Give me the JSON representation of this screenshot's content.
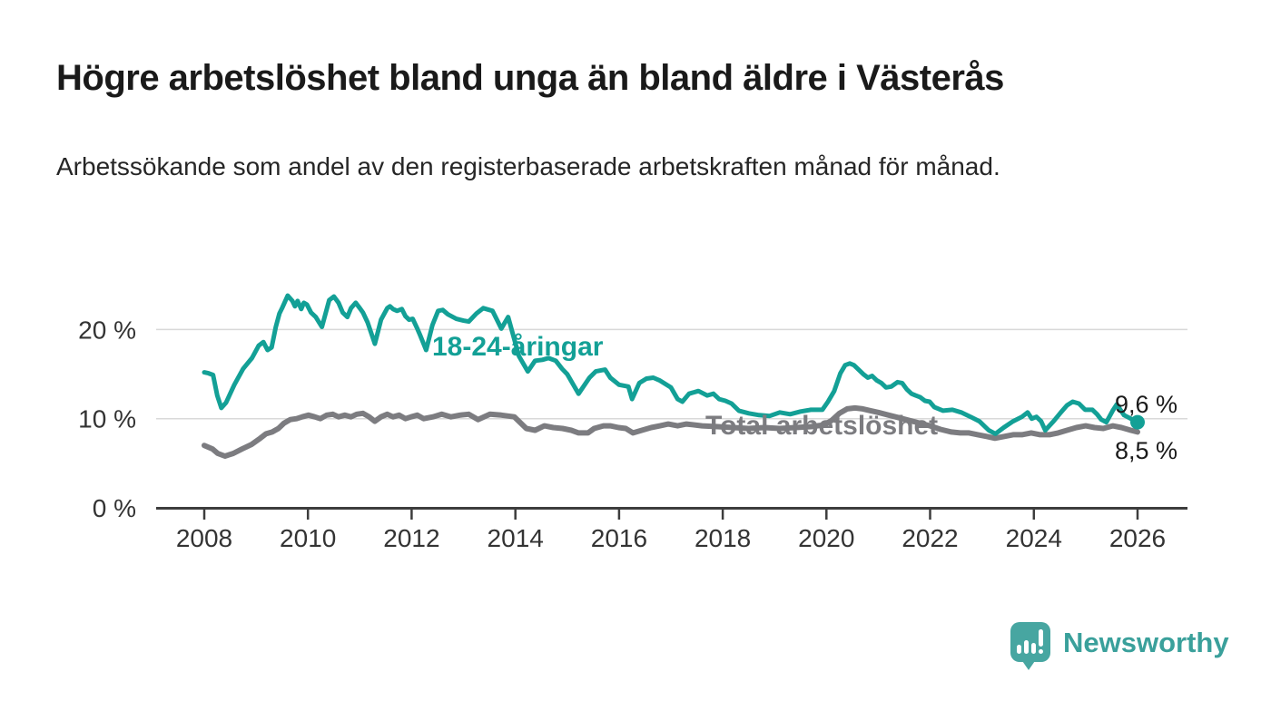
{
  "branding": {
    "name": "Newsworthy",
    "bubble_color": "#47a6a1",
    "text_color": "#3aa09b"
  },
  "chart_data": {
    "type": "line",
    "title": "Högre arbetslöshet bland unga än bland äldre i Västerås",
    "subtitle": "Arbetssökande som andel av den registerbaserade arbetskraften månad för månad.",
    "xlabel": "",
    "ylabel": "",
    "x_unit": "decimal-year (monthly data)",
    "y_unit": "percent",
    "xlim": [
      2007.9,
      2026.3
    ],
    "ylim": [
      0,
      24.5
    ],
    "grid": "horizontal",
    "legend_position": "inline-labels",
    "xticks": [
      {
        "v": 2008,
        "label": "2008"
      },
      {
        "v": 2010,
        "label": "2010"
      },
      {
        "v": 2012,
        "label": "2012"
      },
      {
        "v": 2014,
        "label": "2014"
      },
      {
        "v": 2016,
        "label": "2016"
      },
      {
        "v": 2018,
        "label": "2018"
      },
      {
        "v": 2020,
        "label": "2020"
      },
      {
        "v": 2022,
        "label": "2022"
      },
      {
        "v": 2024,
        "label": "2024"
      },
      {
        "v": 2026,
        "label": "2026"
      }
    ],
    "yticks": [
      {
        "v": 0,
        "label": "0 %"
      },
      {
        "v": 10,
        "label": "10 %"
      },
      {
        "v": 20,
        "label": "20 %"
      }
    ],
    "series": [
      {
        "name": "18-24-åringar",
        "color": "#13a096",
        "line_width": 5,
        "end_label": "9,6 %",
        "end_value": 9.6,
        "end_dot": true,
        "points": [
          [
            2008.0,
            15.2
          ],
          [
            2008.08,
            15.1
          ],
          [
            2008.17,
            14.9
          ],
          [
            2008.25,
            12.6
          ],
          [
            2008.33,
            11.2
          ],
          [
            2008.42,
            11.8
          ],
          [
            2008.58,
            13.8
          ],
          [
            2008.75,
            15.6
          ],
          [
            2008.92,
            16.8
          ],
          [
            2009.05,
            18.2
          ],
          [
            2009.14,
            18.6
          ],
          [
            2009.22,
            17.7
          ],
          [
            2009.3,
            18.0
          ],
          [
            2009.38,
            20.3
          ],
          [
            2009.45,
            21.8
          ],
          [
            2009.5,
            22.4
          ],
          [
            2009.61,
            23.8
          ],
          [
            2009.7,
            23.2
          ],
          [
            2009.75,
            22.6
          ],
          [
            2009.8,
            23.2
          ],
          [
            2009.87,
            22.3
          ],
          [
            2009.92,
            23.0
          ],
          [
            2009.98,
            22.8
          ],
          [
            2010.06,
            21.9
          ],
          [
            2010.15,
            21.4
          ],
          [
            2010.27,
            20.3
          ],
          [
            2010.41,
            23.3
          ],
          [
            2010.5,
            23.7
          ],
          [
            2010.59,
            23.0
          ],
          [
            2010.67,
            21.9
          ],
          [
            2010.76,
            21.4
          ],
          [
            2010.83,
            22.4
          ],
          [
            2010.92,
            23.0
          ],
          [
            2011.0,
            22.4
          ],
          [
            2011.06,
            21.9
          ],
          [
            2011.15,
            20.8
          ],
          [
            2011.29,
            18.4
          ],
          [
            2011.41,
            21.1
          ],
          [
            2011.53,
            22.4
          ],
          [
            2011.58,
            22.6
          ],
          [
            2011.64,
            22.3
          ],
          [
            2011.72,
            22.1
          ],
          [
            2011.81,
            22.3
          ],
          [
            2011.88,
            21.5
          ],
          [
            2011.95,
            21.1
          ],
          [
            2012.02,
            21.2
          ],
          [
            2012.1,
            20.2
          ],
          [
            2012.16,
            19.4
          ],
          [
            2012.28,
            17.7
          ],
          [
            2012.4,
            20.5
          ],
          [
            2012.51,
            22.1
          ],
          [
            2012.6,
            22.2
          ],
          [
            2012.7,
            21.7
          ],
          [
            2012.86,
            21.2
          ],
          [
            2013.0,
            21.0
          ],
          [
            2013.1,
            20.9
          ],
          [
            2013.25,
            21.8
          ],
          [
            2013.38,
            22.4
          ],
          [
            2013.56,
            22.1
          ],
          [
            2013.73,
            20.1
          ],
          [
            2013.86,
            21.4
          ],
          [
            2014.07,
            17.0
          ],
          [
            2014.24,
            15.3
          ],
          [
            2014.38,
            16.5
          ],
          [
            2014.52,
            16.6
          ],
          [
            2014.64,
            16.8
          ],
          [
            2014.78,
            16.5
          ],
          [
            2014.9,
            15.6
          ],
          [
            2015.0,
            15.0
          ],
          [
            2015.22,
            12.8
          ],
          [
            2015.43,
            14.6
          ],
          [
            2015.55,
            15.3
          ],
          [
            2015.73,
            15.5
          ],
          [
            2015.83,
            14.6
          ],
          [
            2016.0,
            13.8
          ],
          [
            2016.18,
            13.6
          ],
          [
            2016.25,
            12.2
          ],
          [
            2016.39,
            14.0
          ],
          [
            2016.53,
            14.5
          ],
          [
            2016.66,
            14.6
          ],
          [
            2016.78,
            14.3
          ],
          [
            2017.0,
            13.5
          ],
          [
            2017.13,
            12.2
          ],
          [
            2017.22,
            11.9
          ],
          [
            2017.35,
            12.8
          ],
          [
            2017.53,
            13.1
          ],
          [
            2017.7,
            12.6
          ],
          [
            2017.82,
            12.8
          ],
          [
            2017.93,
            12.2
          ],
          [
            2018.05,
            12.0
          ],
          [
            2018.17,
            11.7
          ],
          [
            2018.31,
            10.9
          ],
          [
            2018.5,
            10.6
          ],
          [
            2018.7,
            10.4
          ],
          [
            2018.9,
            10.3
          ],
          [
            2019.1,
            10.7
          ],
          [
            2019.3,
            10.5
          ],
          [
            2019.5,
            10.8
          ],
          [
            2019.7,
            11.0
          ],
          [
            2019.92,
            11.0
          ],
          [
            2020.03,
            11.9
          ],
          [
            2020.15,
            13.1
          ],
          [
            2020.27,
            15.1
          ],
          [
            2020.36,
            16.0
          ],
          [
            2020.45,
            16.2
          ],
          [
            2020.53,
            16.0
          ],
          [
            2020.62,
            15.5
          ],
          [
            2020.71,
            15.0
          ],
          [
            2020.8,
            14.6
          ],
          [
            2020.88,
            14.8
          ],
          [
            2020.97,
            14.3
          ],
          [
            2021.06,
            14.0
          ],
          [
            2021.15,
            13.5
          ],
          [
            2021.25,
            13.6
          ],
          [
            2021.37,
            14.1
          ],
          [
            2021.46,
            14.0
          ],
          [
            2021.55,
            13.3
          ],
          [
            2021.64,
            12.8
          ],
          [
            2021.72,
            12.6
          ],
          [
            2021.81,
            12.4
          ],
          [
            2021.9,
            12.0
          ],
          [
            2021.99,
            11.9
          ],
          [
            2022.08,
            11.3
          ],
          [
            2022.25,
            10.9
          ],
          [
            2022.43,
            11.0
          ],
          [
            2022.6,
            10.7
          ],
          [
            2022.78,
            10.2
          ],
          [
            2022.95,
            9.7
          ],
          [
            2023.13,
            8.7
          ],
          [
            2023.26,
            8.3
          ],
          [
            2023.42,
            9.0
          ],
          [
            2023.6,
            9.7
          ],
          [
            2023.77,
            10.2
          ],
          [
            2023.88,
            10.7
          ],
          [
            2023.96,
            10.0
          ],
          [
            2024.05,
            10.2
          ],
          [
            2024.14,
            9.7
          ],
          [
            2024.22,
            8.7
          ],
          [
            2024.38,
            9.7
          ],
          [
            2024.52,
            10.7
          ],
          [
            2024.64,
            11.5
          ],
          [
            2024.75,
            11.9
          ],
          [
            2024.87,
            11.7
          ],
          [
            2024.99,
            11.0
          ],
          [
            2025.13,
            11.0
          ],
          [
            2025.22,
            10.5
          ],
          [
            2025.3,
            9.9
          ],
          [
            2025.4,
            9.6
          ],
          [
            2025.52,
            10.9
          ],
          [
            2025.6,
            11.6
          ],
          [
            2025.74,
            10.4
          ],
          [
            2025.87,
            10.0
          ],
          [
            2026.0,
            9.6
          ]
        ]
      },
      {
        "name": "Total arbetslöshet",
        "color": "#7c7c80",
        "line_width": 6,
        "end_label": "8,5 %",
        "end_value": 8.5,
        "end_dot": false,
        "points": [
          [
            2008.0,
            7.0
          ],
          [
            2008.16,
            6.6
          ],
          [
            2008.26,
            6.1
          ],
          [
            2008.4,
            5.8
          ],
          [
            2008.56,
            6.1
          ],
          [
            2008.73,
            6.6
          ],
          [
            2008.91,
            7.1
          ],
          [
            2009.08,
            7.8
          ],
          [
            2009.19,
            8.3
          ],
          [
            2009.31,
            8.5
          ],
          [
            2009.43,
            8.9
          ],
          [
            2009.54,
            9.5
          ],
          [
            2009.66,
            9.9
          ],
          [
            2009.78,
            10.0
          ],
          [
            2009.89,
            10.2
          ],
          [
            2010.01,
            10.4
          ],
          [
            2010.13,
            10.2
          ],
          [
            2010.24,
            10.0
          ],
          [
            2010.36,
            10.4
          ],
          [
            2010.48,
            10.5
          ],
          [
            2010.59,
            10.2
          ],
          [
            2010.71,
            10.4
          ],
          [
            2010.83,
            10.2
          ],
          [
            2010.94,
            10.5
          ],
          [
            2011.06,
            10.6
          ],
          [
            2011.18,
            10.2
          ],
          [
            2011.29,
            9.7
          ],
          [
            2011.41,
            10.2
          ],
          [
            2011.53,
            10.5
          ],
          [
            2011.64,
            10.2
          ],
          [
            2011.76,
            10.4
          ],
          [
            2011.88,
            10.0
          ],
          [
            2011.99,
            10.2
          ],
          [
            2012.11,
            10.4
          ],
          [
            2012.23,
            10.0
          ],
          [
            2012.41,
            10.2
          ],
          [
            2012.58,
            10.5
          ],
          [
            2012.76,
            10.2
          ],
          [
            2012.93,
            10.4
          ],
          [
            2013.1,
            10.5
          ],
          [
            2013.28,
            9.9
          ],
          [
            2013.51,
            10.5
          ],
          [
            2013.73,
            10.4
          ],
          [
            2013.98,
            10.2
          ],
          [
            2014.21,
            8.9
          ],
          [
            2014.38,
            8.7
          ],
          [
            2014.56,
            9.2
          ],
          [
            2014.73,
            9.0
          ],
          [
            2014.91,
            8.9
          ],
          [
            2015.08,
            8.7
          ],
          [
            2015.22,
            8.4
          ],
          [
            2015.4,
            8.4
          ],
          [
            2015.52,
            8.9
          ],
          [
            2015.7,
            9.2
          ],
          [
            2015.83,
            9.2
          ],
          [
            2015.99,
            9.0
          ],
          [
            2016.13,
            8.9
          ],
          [
            2016.27,
            8.4
          ],
          [
            2016.44,
            8.7
          ],
          [
            2016.62,
            9.0
          ],
          [
            2016.79,
            9.2
          ],
          [
            2016.95,
            9.4
          ],
          [
            2017.13,
            9.2
          ],
          [
            2017.3,
            9.4
          ],
          [
            2017.6,
            9.2
          ],
          [
            2017.9,
            9.1
          ],
          [
            2018.2,
            9.0
          ],
          [
            2018.5,
            8.9
          ],
          [
            2018.8,
            9.0
          ],
          [
            2019.1,
            8.9
          ],
          [
            2019.4,
            9.0
          ],
          [
            2019.7,
            9.1
          ],
          [
            2019.95,
            9.3
          ],
          [
            2020.1,
            9.8
          ],
          [
            2020.25,
            10.6
          ],
          [
            2020.4,
            11.1
          ],
          [
            2020.55,
            11.2
          ],
          [
            2020.7,
            11.1
          ],
          [
            2020.85,
            10.9
          ],
          [
            2021.0,
            10.7
          ],
          [
            2021.2,
            10.4
          ],
          [
            2021.4,
            10.1
          ],
          [
            2021.6,
            9.8
          ],
          [
            2021.8,
            9.5
          ],
          [
            2022.0,
            9.2
          ],
          [
            2022.2,
            8.8
          ],
          [
            2022.41,
            8.5
          ],
          [
            2022.58,
            8.4
          ],
          [
            2022.75,
            8.4
          ],
          [
            2022.92,
            8.2
          ],
          [
            2023.1,
            8.0
          ],
          [
            2023.25,
            7.8
          ],
          [
            2023.42,
            8.0
          ],
          [
            2023.6,
            8.2
          ],
          [
            2023.77,
            8.2
          ],
          [
            2023.95,
            8.4
          ],
          [
            2024.12,
            8.2
          ],
          [
            2024.3,
            8.2
          ],
          [
            2024.47,
            8.4
          ],
          [
            2024.64,
            8.7
          ],
          [
            2024.82,
            9.0
          ],
          [
            2025.0,
            9.2
          ],
          [
            2025.17,
            9.0
          ],
          [
            2025.34,
            8.9
          ],
          [
            2025.52,
            9.2
          ],
          [
            2025.69,
            9.0
          ],
          [
            2025.87,
            8.7
          ],
          [
            2026.0,
            8.5
          ]
        ]
      }
    ]
  }
}
